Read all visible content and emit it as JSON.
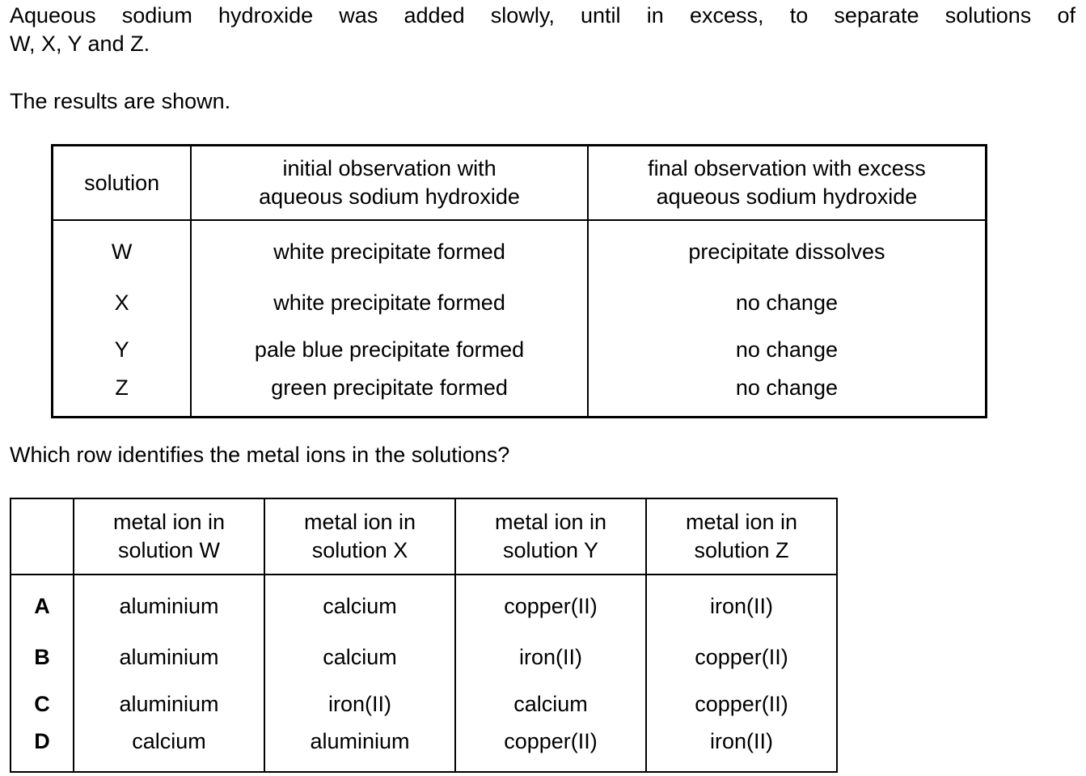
{
  "intro": {
    "line1": "Aqueous sodium hydroxide was added slowly, until in excess, to separate solutions of",
    "line2": "W, X, Y and Z."
  },
  "results_text": "The results are shown.",
  "observations_table": {
    "headers": [
      [
        "solution"
      ],
      [
        "initial observation with",
        "aqueous sodium hydroxide"
      ],
      [
        "final observation with excess",
        "aqueous sodium hydroxide"
      ]
    ],
    "rows": [
      [
        "W",
        "white precipitate formed",
        "precipitate dissolves"
      ],
      [
        "X",
        "white precipitate formed",
        "no change"
      ],
      [
        "Y",
        "pale blue precipitate formed",
        "no change"
      ],
      [
        "Z",
        "green precipitate formed",
        "no change"
      ]
    ]
  },
  "question": "Which row identifies the metal ions in the solutions?",
  "ions_table": {
    "headers": [
      [
        ""
      ],
      [
        "metal ion in",
        "solution W"
      ],
      [
        "metal ion in",
        "solution X"
      ],
      [
        "metal ion in",
        "solution Y"
      ],
      [
        "metal ion in",
        "solution Z"
      ]
    ],
    "rows": [
      [
        "A",
        "aluminium",
        "calcium",
        "copper(II)",
        "iron(II)"
      ],
      [
        "B",
        "aluminium",
        "calcium",
        "iron(II)",
        "copper(II)"
      ],
      [
        "C",
        "aluminium",
        "iron(II)",
        "calcium",
        "copper(II)"
      ],
      [
        "D",
        "calcium",
        "aluminium",
        "copper(II)",
        "iron(II)"
      ]
    ]
  }
}
